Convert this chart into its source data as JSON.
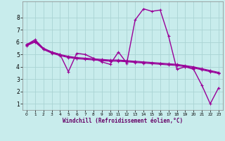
{
  "xlabel": "Windchill (Refroidissement éolien,°C)",
  "bg_color": "#c8ecec",
  "grid_color": "#b0d8d8",
  "line_color": "#990099",
  "xlim_min": -0.5,
  "xlim_max": 23.5,
  "ylim_min": 0.5,
  "ylim_max": 9.3,
  "yticks": [
    1,
    2,
    3,
    4,
    5,
    6,
    7,
    8
  ],
  "xticks": [
    0,
    1,
    2,
    3,
    4,
    5,
    6,
    7,
    8,
    9,
    10,
    11,
    12,
    13,
    14,
    15,
    16,
    17,
    18,
    19,
    20,
    21,
    22,
    23
  ],
  "series": [
    {
      "x": [
        0,
        1,
        2,
        3,
        4,
        5,
        6,
        7,
        8,
        9,
        10,
        11,
        12,
        13,
        14,
        15,
        16,
        17,
        18,
        19,
        20,
        21,
        22,
        23
      ],
      "y": [
        5.8,
        6.2,
        5.5,
        5.2,
        5.0,
        3.6,
        5.1,
        5.0,
        4.7,
        4.4,
        4.2,
        5.2,
        4.3,
        7.8,
        8.7,
        8.5,
        8.6,
        6.5,
        3.8,
        4.0,
        3.8,
        2.5,
        1.0,
        2.3
      ],
      "lw": 1.0,
      "marker": "+"
    },
    {
      "x": [
        0,
        1,
        2,
        3,
        4,
        5,
        6,
        7,
        8,
        9,
        10,
        11,
        12,
        13,
        14,
        15,
        16,
        17,
        18,
        19,
        20,
        21,
        22,
        23
      ],
      "y": [
        5.8,
        6.1,
        5.5,
        5.2,
        5.0,
        4.85,
        4.75,
        4.7,
        4.65,
        4.6,
        4.55,
        4.55,
        4.5,
        4.45,
        4.4,
        4.35,
        4.3,
        4.25,
        4.2,
        4.1,
        4.0,
        3.85,
        3.7,
        3.55
      ],
      "lw": 0.9,
      "marker": "+"
    },
    {
      "x": [
        0,
        1,
        2,
        3,
        4,
        5,
        6,
        7,
        8,
        9,
        10,
        11,
        12,
        13,
        14,
        15,
        16,
        17,
        18,
        19,
        20,
        21,
        22,
        23
      ],
      "y": [
        5.75,
        6.05,
        5.45,
        5.15,
        4.95,
        4.8,
        4.7,
        4.65,
        4.6,
        4.55,
        4.5,
        4.5,
        4.45,
        4.4,
        4.35,
        4.3,
        4.25,
        4.2,
        4.15,
        4.05,
        3.95,
        3.8,
        3.65,
        3.5
      ],
      "lw": 0.8,
      "marker": "+"
    },
    {
      "x": [
        0,
        1,
        2,
        3,
        4,
        5,
        6,
        7,
        8,
        9,
        10,
        11,
        12,
        13,
        14,
        15,
        16,
        17,
        18,
        19,
        20,
        21,
        22,
        23
      ],
      "y": [
        5.7,
        6.0,
        5.4,
        5.1,
        4.9,
        4.75,
        4.65,
        4.6,
        4.55,
        4.5,
        4.45,
        4.45,
        4.4,
        4.35,
        4.3,
        4.25,
        4.2,
        4.15,
        4.1,
        4.0,
        3.9,
        3.75,
        3.6,
        3.45
      ],
      "lw": 0.8,
      "marker": "+"
    }
  ]
}
